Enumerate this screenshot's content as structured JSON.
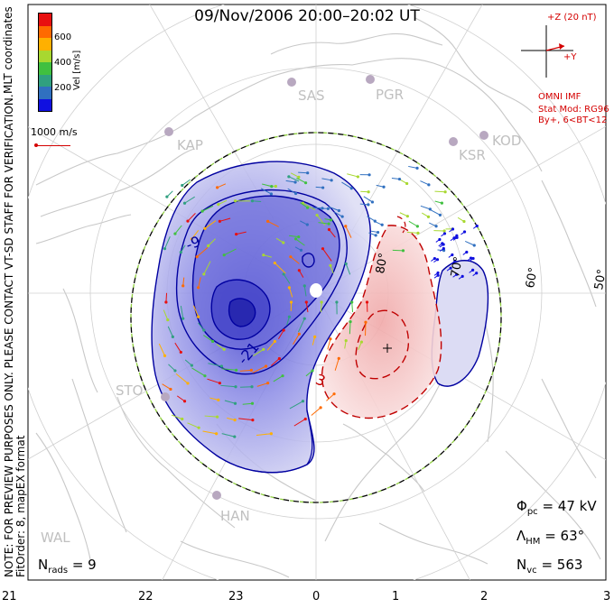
{
  "title": "09/Nov/2006 20:00–20:02 UT",
  "side_note_line1": "NOTE: FOR PREVIEW PURPOSES ONLY. PLEASE CONTACT VT-SD STAFF FOR VERIFICATION.",
  "side_note_line2": "FitOrder: 8, mapEX format",
  "color_scale": {
    "label": "Vel [m/s]",
    "coords_label": "MLT coordinates",
    "ticks": [
      "600",
      "400",
      "200"
    ],
    "colors": [
      "#e81010",
      "#ff6a00",
      "#ffb000",
      "#a8d830",
      "#40c040",
      "#30a080",
      "#3070c0",
      "#1010e0"
    ]
  },
  "scale_vector": {
    "label": "1000 m/s",
    "color": "#d40000"
  },
  "imf": {
    "z_label": "+Z (20 nT)",
    "y_label": "+Y",
    "omni": "OMNI IMF",
    "stat_mod": "Stat Mod: RG96",
    "bin": "By+, 6<BT<12",
    "color": "#d40000"
  },
  "stats": {
    "phi_symbol": "Φ",
    "phi_sub": "pc",
    "phi_value": "= 47 kV",
    "lambda_symbol": "Λ",
    "lambda_sub": "HM",
    "lambda_value": "= 63°",
    "nvc_symbol": "N",
    "nvc_sub": "vc",
    "nvc_value": "= 563",
    "nrads_symbol": "N",
    "nrads_sub": "rads",
    "nrads_value": "= 9"
  },
  "latitude_labels": [
    "80°",
    "70°",
    "60°",
    "50°"
  ],
  "mlt_labels": [
    "21",
    "22",
    "23",
    "0",
    "1",
    "2",
    "3"
  ],
  "contour_labels": {
    "negative": [
      "-9",
      "-21"
    ],
    "positive": [
      "3"
    ]
  },
  "stations": [
    "SAS",
    "PGR",
    "KAP",
    "KSR",
    "KOD",
    "STO",
    "HAN",
    "WAL"
  ],
  "colors": {
    "negative_fill": "#8888e8",
    "positive_fill": "#f0b0b0",
    "negative_contour": "#0000a0",
    "positive_contour": "#c00000",
    "coastline": "#c8c8c8",
    "grid": "#d0d0d0",
    "station": "#b8a8c0"
  }
}
